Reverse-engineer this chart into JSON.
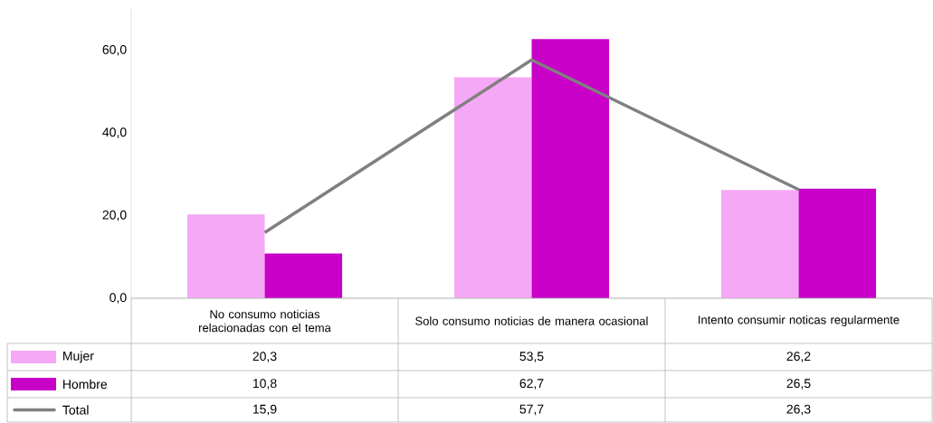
{
  "chart_data": {
    "type": "bar",
    "categories": [
      "No consumo noticias relacionadas con el tema",
      "Solo consumo noticias de manera ocasional",
      "Intento consumir noticas regularmente"
    ],
    "series": [
      {
        "name": "Mujer",
        "color": "#f5a8f5",
        "values": [
          20.3,
          53.5,
          26.2
        ],
        "value_labels": [
          "20,3",
          "53,5",
          "26,2"
        ]
      },
      {
        "name": "Hombre",
        "color": "#c800c8",
        "values": [
          10.8,
          62.7,
          26.5
        ],
        "value_labels": [
          "10,8",
          "62,7",
          "26,5"
        ]
      },
      {
        "name": "Total",
        "type": "line",
        "color": "#808080",
        "values": [
          15.9,
          57.7,
          26.3
        ],
        "value_labels": [
          "15,9",
          "57,7",
          "26,3"
        ]
      }
    ],
    "ylim": [
      0,
      70
    ],
    "yticks": [
      {
        "value": 0,
        "label": "0,0"
      },
      {
        "value": 20,
        "label": "20,0"
      },
      {
        "value": 40,
        "label": "40,0"
      },
      {
        "value": 60,
        "label": "60,0"
      }
    ],
    "legend": "bottom left"
  }
}
